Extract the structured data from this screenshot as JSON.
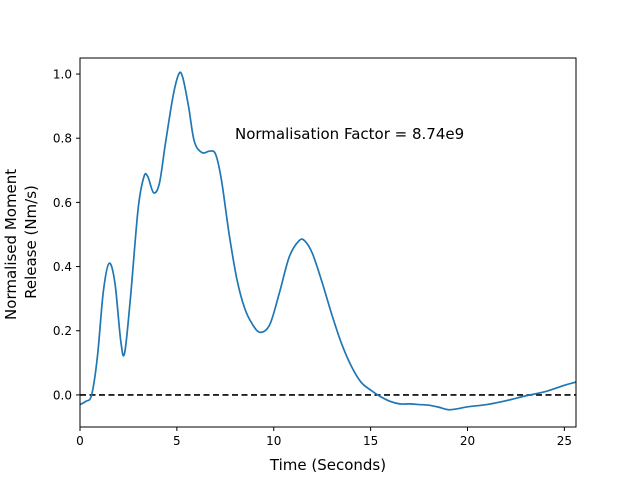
{
  "chart_data": {
    "type": "line",
    "title": "",
    "xlabel": "Time (Seconds)",
    "ylabel_lines": [
      "Normalised Moment",
      "Release (Nm/s)"
    ],
    "annotation": "Normalisation Factor = 8.74e9",
    "xlim": [
      0,
      25.6
    ],
    "ylim": [
      -0.1,
      1.05
    ],
    "xticks": [
      0,
      5,
      10,
      15,
      20,
      25
    ],
    "xtick_labels": [
      "0",
      "5",
      "10",
      "15",
      "20",
      "25"
    ],
    "yticks": [
      0.0,
      0.2,
      0.4,
      0.6,
      0.8,
      1.0
    ],
    "ytick_labels": [
      "0.0",
      "0.2",
      "0.4",
      "0.6",
      "0.8",
      "1.0"
    ],
    "grid": false,
    "reference_line": {
      "y": 0.0,
      "style": "dashed",
      "color": "#000000"
    },
    "series": [
      {
        "color": "#1f77b4",
        "x": [
          0,
          0.3,
          0.6,
          0.9,
          1.2,
          1.5,
          1.8,
          2.1,
          2.3,
          2.6,
          3.0,
          3.3,
          3.5,
          3.8,
          4.1,
          4.4,
          4.8,
          5.1,
          5.3,
          5.6,
          5.9,
          6.3,
          6.7,
          7.0,
          7.3,
          7.7,
          8.1,
          8.5,
          8.9,
          9.3,
          9.8,
          10.3,
          10.8,
          11.3,
          11.6,
          12.0,
          12.5,
          13.0,
          13.5,
          14.0,
          14.5,
          15.0,
          15.5,
          16.0,
          16.5,
          17.0,
          17.5,
          18.0,
          18.5,
          19.0,
          19.5,
          20.0,
          21.0,
          22.0,
          23.0,
          24.0,
          25.0,
          25.6
        ],
        "values": [
          -0.03,
          -0.02,
          0.0,
          0.12,
          0.32,
          0.41,
          0.35,
          0.17,
          0.13,
          0.3,
          0.58,
          0.68,
          0.68,
          0.63,
          0.66,
          0.78,
          0.93,
          1.0,
          0.99,
          0.9,
          0.79,
          0.755,
          0.76,
          0.75,
          0.67,
          0.5,
          0.36,
          0.27,
          0.22,
          0.195,
          0.22,
          0.32,
          0.43,
          0.48,
          0.48,
          0.44,
          0.35,
          0.25,
          0.16,
          0.09,
          0.04,
          0.015,
          -0.005,
          -0.02,
          -0.028,
          -0.028,
          -0.03,
          -0.032,
          -0.038,
          -0.046,
          -0.043,
          -0.037,
          -0.03,
          -0.018,
          -0.003,
          0.01,
          0.03,
          0.04
        ]
      }
    ]
  }
}
